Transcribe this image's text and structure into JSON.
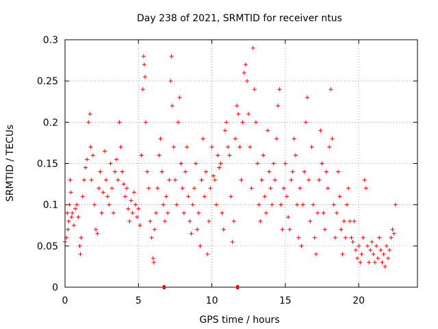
{
  "chart_data": {
    "type": "scatter",
    "title": "Day 238 of 2021, SRMTID for receiver ntus",
    "xlabel": "GPS time / hours",
    "ylabel": "SRMTID / TECUs",
    "xlim": [
      0,
      24
    ],
    "ylim": [
      0,
      0.3
    ],
    "xticks": [
      0,
      5,
      10,
      15,
      20
    ],
    "xtick_labels": [
      "0",
      "5",
      "10",
      "15",
      "20"
    ],
    "yticks": [
      0,
      0.05,
      0.1,
      0.15,
      0.2,
      0.25,
      0.3
    ],
    "ytick_labels": [
      "0",
      "0.05",
      "0.1",
      "0.15",
      "0.2",
      "0.25",
      "0.3"
    ],
    "grid": true,
    "marker": "+",
    "color": "#ff0000",
    "axis_markers_x": [
      6.75,
      11.75
    ],
    "series": [
      {
        "name": "SRMTID",
        "points": [
          [
            0.0,
            0.055
          ],
          [
            0.1,
            0.06
          ],
          [
            0.15,
            0.09
          ],
          [
            0.2,
            0.07
          ],
          [
            0.25,
            0.08
          ],
          [
            0.3,
            0.1
          ],
          [
            0.35,
            0.13
          ],
          [
            0.4,
            0.115
          ],
          [
            0.45,
            0.085
          ],
          [
            0.5,
            0.09
          ],
          [
            0.6,
            0.075
          ],
          [
            0.7,
            0.095
          ],
          [
            0.8,
            0.1
          ],
          [
            0.9,
            0.085
          ],
          [
            1.0,
            0.05
          ],
          [
            1.05,
            0.04
          ],
          [
            1.1,
            0.06
          ],
          [
            1.2,
            0.11
          ],
          [
            1.3,
            0.13
          ],
          [
            1.4,
            0.145
          ],
          [
            1.5,
            0.155
          ],
          [
            1.6,
            0.2
          ],
          [
            1.7,
            0.21
          ],
          [
            1.75,
            0.17
          ],
          [
            1.8,
            0.13
          ],
          [
            1.9,
            0.16
          ],
          [
            2.0,
            0.1
          ],
          [
            2.1,
            0.07
          ],
          [
            2.2,
            0.065
          ],
          [
            2.3,
            0.12
          ],
          [
            2.4,
            0.14
          ],
          [
            2.5,
            0.09
          ],
          [
            2.6,
            0.115
          ],
          [
            2.7,
            0.165
          ],
          [
            2.8,
            0.13
          ],
          [
            2.9,
            0.11
          ],
          [
            3.0,
            0.1
          ],
          [
            3.1,
            0.15
          ],
          [
            3.2,
            0.12
          ],
          [
            3.3,
            0.09
          ],
          [
            3.4,
            0.14
          ],
          [
            3.5,
            0.155
          ],
          [
            3.6,
            0.13
          ],
          [
            3.7,
            0.2
          ],
          [
            3.8,
            0.17
          ],
          [
            3.9,
            0.14
          ],
          [
            4.0,
            0.125
          ],
          [
            4.1,
            0.11
          ],
          [
            4.2,
            0.12
          ],
          [
            4.3,
            0.095
          ],
          [
            4.4,
            0.08
          ],
          [
            4.5,
            0.105
          ],
          [
            4.6,
            0.09
          ],
          [
            4.7,
            0.115
          ],
          [
            4.8,
            0.1
          ],
          [
            4.9,
            0.085
          ],
          [
            5.0,
            0.095
          ],
          [
            5.1,
            0.075
          ],
          [
            5.2,
            0.16
          ],
          [
            5.3,
            0.24
          ],
          [
            5.35,
            0.28
          ],
          [
            5.4,
            0.27
          ],
          [
            5.45,
            0.255
          ],
          [
            5.5,
            0.2
          ],
          [
            5.6,
            0.14
          ],
          [
            5.7,
            0.12
          ],
          [
            5.8,
            0.08
          ],
          [
            5.9,
            0.06
          ],
          [
            6.0,
            0.035
          ],
          [
            6.05,
            0.03
          ],
          [
            6.1,
            0.07
          ],
          [
            6.2,
            0.09
          ],
          [
            6.3,
            0.12
          ],
          [
            6.4,
            0.16
          ],
          [
            6.5,
            0.18
          ],
          [
            6.6,
            0.14
          ],
          [
            6.7,
            0.1
          ],
          [
            6.8,
            0.08
          ],
          [
            6.9,
            0.11
          ],
          [
            7.0,
            0.09
          ],
          [
            7.1,
            0.13
          ],
          [
            7.2,
            0.25
          ],
          [
            7.25,
            0.28
          ],
          [
            7.3,
            0.22
          ],
          [
            7.4,
            0.17
          ],
          [
            7.5,
            0.13
          ],
          [
            7.6,
            0.1
          ],
          [
            7.7,
            0.2
          ],
          [
            7.8,
            0.23
          ],
          [
            7.9,
            0.15
          ],
          [
            8.0,
            0.12
          ],
          [
            8.1,
            0.09
          ],
          [
            8.2,
            0.14
          ],
          [
            8.3,
            0.17
          ],
          [
            8.4,
            0.11
          ],
          [
            8.5,
            0.08
          ],
          [
            8.6,
            0.065
          ],
          [
            8.7,
            0.1
          ],
          [
            8.8,
            0.12
          ],
          [
            8.9,
            0.15
          ],
          [
            9.0,
            0.07
          ],
          [
            9.1,
            0.09
          ],
          [
            9.2,
            0.05
          ],
          [
            9.3,
            0.13
          ],
          [
            9.4,
            0.18
          ],
          [
            9.5,
            0.11
          ],
          [
            9.6,
            0.14
          ],
          [
            9.7,
            0.04
          ],
          [
            9.8,
            0.08
          ],
          [
            9.9,
            0.12
          ],
          [
            10.0,
            0.17
          ],
          [
            10.1,
            0.135
          ],
          [
            10.2,
            0.13
          ],
          [
            10.3,
            0.1
          ],
          [
            10.4,
            0.16
          ],
          [
            10.5,
            0.145
          ],
          [
            10.6,
            0.15
          ],
          [
            10.7,
            0.09
          ],
          [
            10.8,
            0.07
          ],
          [
            10.9,
            0.19
          ],
          [
            11.0,
            0.2
          ],
          [
            11.1,
            0.17
          ],
          [
            11.2,
            0.16
          ],
          [
            11.3,
            0.11
          ],
          [
            11.4,
            0.055
          ],
          [
            11.5,
            0.08
          ],
          [
            11.6,
            0.18
          ],
          [
            11.7,
            0.22
          ],
          [
            11.8,
            0.21
          ],
          [
            11.9,
            0.17
          ],
          [
            12.0,
            0.13
          ],
          [
            12.1,
            0.2
          ],
          [
            12.2,
            0.26
          ],
          [
            12.3,
            0.27
          ],
          [
            12.4,
            0.25
          ],
          [
            12.5,
            0.21
          ],
          [
            12.6,
            0.17
          ],
          [
            12.7,
            0.12
          ],
          [
            12.8,
            0.29
          ],
          [
            12.9,
            0.24
          ],
          [
            13.0,
            0.2
          ],
          [
            13.1,
            0.15
          ],
          [
            13.2,
            0.1
          ],
          [
            13.3,
            0.08
          ],
          [
            13.4,
            0.13
          ],
          [
            13.5,
            0.16
          ],
          [
            13.6,
            0.11
          ],
          [
            13.7,
            0.09
          ],
          [
            13.8,
            0.19
          ],
          [
            13.9,
            0.14
          ],
          [
            14.0,
            0.12
          ],
          [
            14.1,
            0.1
          ],
          [
            14.2,
            0.15
          ],
          [
            14.3,
            0.13
          ],
          [
            14.4,
            0.18
          ],
          [
            14.5,
            0.22
          ],
          [
            14.6,
            0.24
          ],
          [
            14.7,
            0.1
          ],
          [
            14.8,
            0.07
          ],
          [
            14.9,
            0.12
          ],
          [
            15.0,
            0.15
          ],
          [
            15.1,
            0.11
          ],
          [
            15.2,
            0.085
          ],
          [
            15.3,
            0.07
          ],
          [
            15.4,
            0.13
          ],
          [
            15.5,
            0.14
          ],
          [
            15.6,
            0.18
          ],
          [
            15.7,
            0.16
          ],
          [
            15.8,
            0.1
          ],
          [
            15.9,
            0.06
          ],
          [
            16.0,
            0.12
          ],
          [
            16.1,
            0.05
          ],
          [
            16.2,
            0.1
          ],
          [
            16.3,
            0.14
          ],
          [
            16.4,
            0.2
          ],
          [
            16.5,
            0.23
          ],
          [
            16.6,
            0.13
          ],
          [
            16.7,
            0.08
          ],
          [
            16.8,
            0.17
          ],
          [
            16.9,
            0.1
          ],
          [
            17.0,
            0.06
          ],
          [
            17.1,
            0.04
          ],
          [
            17.2,
            0.09
          ],
          [
            17.3,
            0.13
          ],
          [
            17.4,
            0.19
          ],
          [
            17.5,
            0.15
          ],
          [
            17.6,
            0.09
          ],
          [
            17.7,
            0.07
          ],
          [
            17.8,
            0.14
          ],
          [
            17.9,
            0.12
          ],
          [
            18.0,
            0.17
          ],
          [
            18.1,
            0.24
          ],
          [
            18.2,
            0.18
          ],
          [
            18.3,
            0.1
          ],
          [
            18.4,
            0.06
          ],
          [
            18.5,
            0.09
          ],
          [
            18.6,
            0.14
          ],
          [
            18.7,
            0.11
          ],
          [
            18.8,
            0.07
          ],
          [
            18.9,
            0.04
          ],
          [
            19.0,
            0.08
          ],
          [
            19.1,
            0.06
          ],
          [
            19.2,
            0.1
          ],
          [
            19.3,
            0.12
          ],
          [
            19.4,
            0.08
          ],
          [
            19.5,
            0.06
          ],
          [
            19.6,
            0.055
          ],
          [
            19.7,
            0.08
          ],
          [
            19.8,
            0.045
          ],
          [
            19.9,
            0.035
          ],
          [
            20.0,
            0.05
          ],
          [
            20.1,
            0.03
          ],
          [
            20.2,
            0.04
          ],
          [
            20.3,
            0.06
          ],
          [
            20.4,
            0.13
          ],
          [
            20.5,
            0.12
          ],
          [
            20.6,
            0.05
          ],
          [
            20.7,
            0.03
          ],
          [
            20.8,
            0.045
          ],
          [
            20.9,
            0.055
          ],
          [
            21.0,
            0.04
          ],
          [
            21.1,
            0.03
          ],
          [
            21.2,
            0.05
          ],
          [
            21.3,
            0.035
          ],
          [
            21.4,
            0.06
          ],
          [
            21.5,
            0.045
          ],
          [
            21.6,
            0.03
          ],
          [
            21.7,
            0.04
          ],
          [
            21.8,
            0.025
          ],
          [
            21.9,
            0.05
          ],
          [
            22.0,
            0.035
          ],
          [
            22.1,
            0.045
          ],
          [
            22.2,
            0.06
          ],
          [
            22.3,
            0.07
          ],
          [
            22.4,
            0.065
          ],
          [
            22.5,
            0.1
          ]
        ]
      }
    ]
  }
}
